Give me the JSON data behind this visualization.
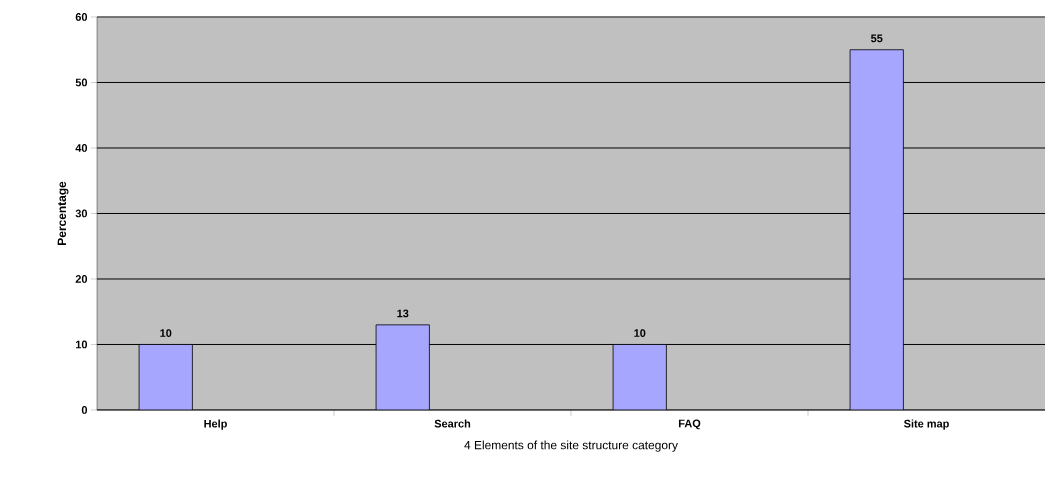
{
  "chart_data": {
    "type": "bar",
    "xlabel": "4 Elements of the site structure category",
    "ylabel": "Percentage",
    "categories": [
      "Help",
      "Search",
      "FAQ",
      "Site map"
    ],
    "values": [
      10,
      13,
      10,
      55
    ],
    "color": "#a6a6ff",
    "ylim": [
      0,
      60
    ],
    "yticks": [
      0,
      10,
      20,
      30,
      40,
      50,
      60
    ],
    "grid": "y",
    "data_labels": true
  }
}
